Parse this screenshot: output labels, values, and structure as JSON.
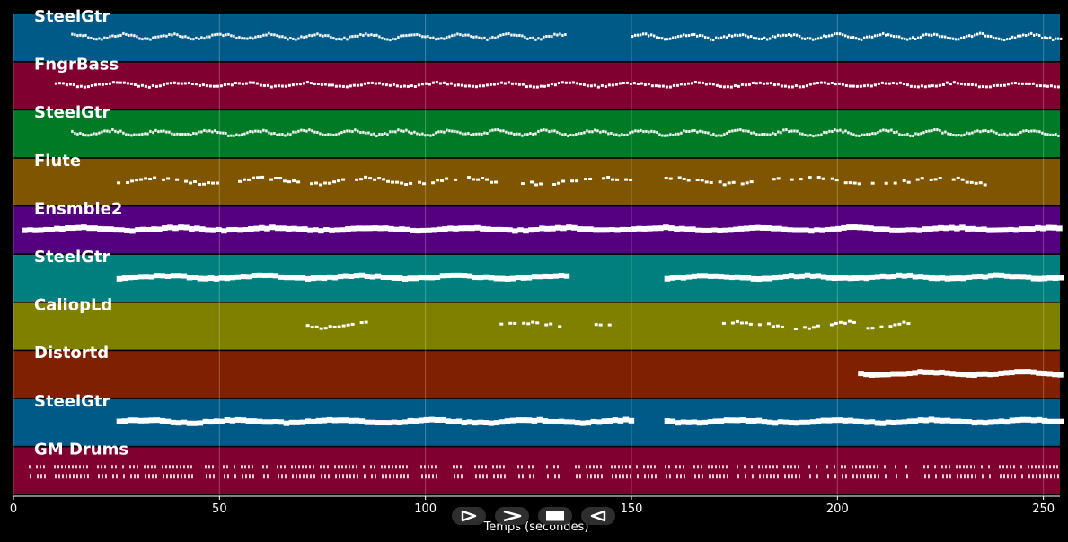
{
  "chart_data": {
    "type": "piano-roll",
    "xlabel": "Temps (secondes)",
    "xlim": [
      0,
      254
    ],
    "xticks": [
      0,
      50,
      100,
      150,
      200,
      250
    ],
    "tracks": [
      {
        "name": "SteelGtr",
        "color": "#005a87",
        "segments": [
          [
            14,
            134,
            "dense"
          ],
          [
            150,
            254,
            "dense"
          ]
        ]
      },
      {
        "name": "FngrBass",
        "color": "#800030",
        "segments": [
          [
            10,
            254,
            "line"
          ]
        ]
      },
      {
        "name": "SteelGtr",
        "color": "#007a25",
        "segments": [
          [
            14,
            254,
            "dense"
          ]
        ]
      },
      {
        "name": "Flute",
        "color": "#7f5500",
        "segments": [
          [
            24,
            150,
            "sparse"
          ],
          [
            158,
            236,
            "sparse"
          ]
        ]
      },
      {
        "name": "Ensmble2",
        "color": "#55007f",
        "segments": [
          [
            2,
            254,
            "block"
          ]
        ]
      },
      {
        "name": "SteelGtr",
        "color": "#007f7f",
        "segments": [
          [
            25,
            134,
            "block"
          ],
          [
            158,
            254,
            "block"
          ]
        ]
      },
      {
        "name": "CaliopLd",
        "color": "#7f7f00",
        "segments": [
          [
            71,
            86,
            "sparse"
          ],
          [
            118,
            134,
            "sparse"
          ],
          [
            141,
            145,
            "sparse"
          ],
          [
            172,
            204,
            "sparse"
          ],
          [
            207,
            217,
            "sparse"
          ]
        ]
      },
      {
        "name": "Distortd",
        "color": "#7f2000",
        "segments": [
          [
            205,
            254,
            "block"
          ]
        ]
      },
      {
        "name": "SteelGtr",
        "color": "#005a87",
        "segments": [
          [
            25,
            150,
            "block"
          ],
          [
            158,
            254,
            "block"
          ]
        ]
      },
      {
        "name": "GM Drums",
        "color": "#800030",
        "segments": [
          [
            2,
            254,
            "drums"
          ]
        ]
      }
    ]
  },
  "controls": [
    {
      "name": "play-icon",
      "label": "play"
    },
    {
      "name": "fast-forward-icon",
      "label": "forward"
    },
    {
      "name": "stop-icon",
      "label": "stop"
    },
    {
      "name": "rewind-icon",
      "label": "back"
    }
  ]
}
